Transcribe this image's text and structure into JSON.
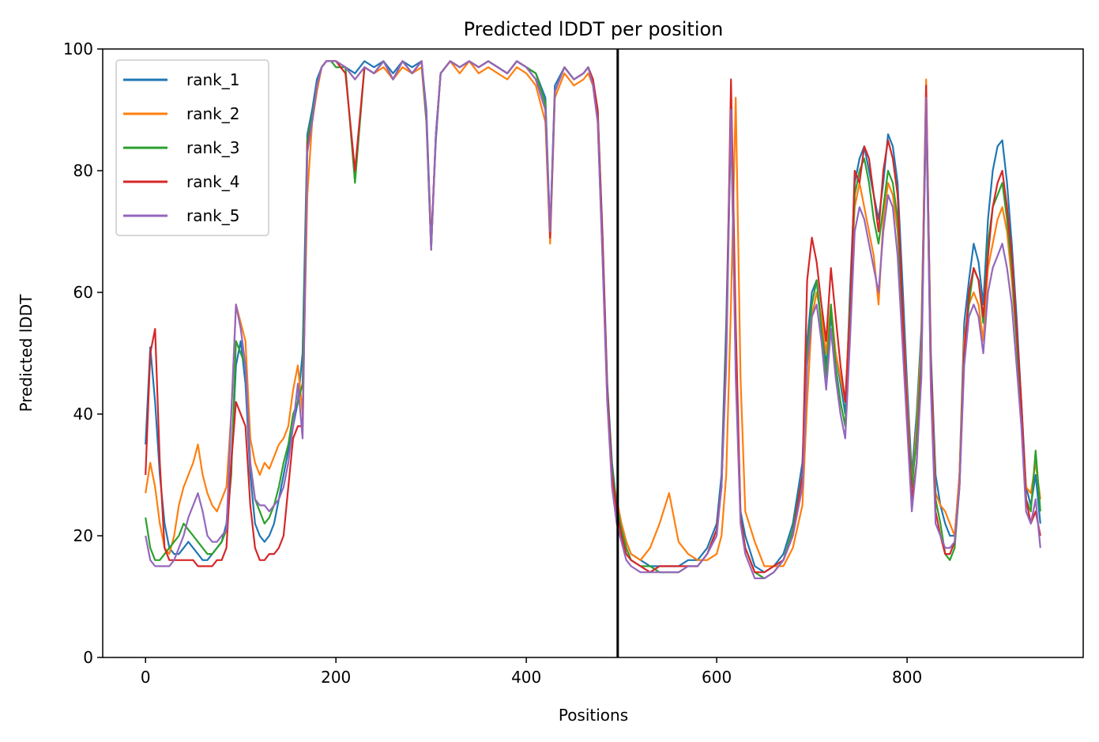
{
  "chart_data": {
    "type": "line",
    "title": "Predicted lDDT per position",
    "xlabel": "Positions",
    "ylabel": "Predicted lDDT",
    "xlim": [
      -45,
      985
    ],
    "ylim": [
      0,
      100
    ],
    "xticks": [
      0,
      200,
      400,
      600,
      800
    ],
    "yticks": [
      0,
      20,
      40,
      60,
      80,
      100
    ],
    "legend_position": "top-left",
    "vline_x": 496,
    "x": [
      0,
      5,
      10,
      15,
      20,
      25,
      30,
      35,
      40,
      45,
      50,
      55,
      60,
      65,
      70,
      75,
      80,
      85,
      90,
      95,
      100,
      105,
      110,
      115,
      120,
      125,
      130,
      135,
      140,
      145,
      150,
      155,
      160,
      165,
      170,
      175,
      180,
      185,
      190,
      195,
      200,
      210,
      220,
      230,
      240,
      250,
      260,
      270,
      280,
      290,
      295,
      300,
      305,
      310,
      320,
      330,
      340,
      350,
      360,
      370,
      380,
      390,
      400,
      410,
      420,
      425,
      430,
      440,
      450,
      460,
      465,
      470,
      475,
      480,
      485,
      490,
      495,
      500,
      505,
      510,
      520,
      530,
      540,
      550,
      560,
      570,
      580,
      590,
      600,
      605,
      610,
      615,
      620,
      625,
      630,
      640,
      650,
      660,
      670,
      680,
      690,
      695,
      700,
      705,
      710,
      715,
      720,
      725,
      730,
      735,
      740,
      745,
      750,
      755,
      760,
      765,
      770,
      775,
      780,
      785,
      790,
      795,
      800,
      805,
      810,
      815,
      820,
      825,
      830,
      835,
      840,
      845,
      850,
      855,
      860,
      865,
      870,
      875,
      880,
      885,
      890,
      895,
      900,
      905,
      910,
      915,
      920,
      925,
      930,
      935,
      940
    ],
    "series": [
      {
        "name": "rank_1",
        "color": "#1f77b4",
        "values": [
          35,
          51,
          42,
          30,
          22,
          18,
          17,
          17,
          18,
          19,
          18,
          17,
          16,
          16,
          17,
          18,
          19,
          22,
          32,
          48,
          52,
          45,
          30,
          22,
          20,
          19,
          20,
          22,
          26,
          30,
          34,
          38,
          42,
          50,
          86,
          90,
          95,
          97,
          98,
          98,
          98,
          97,
          96,
          98,
          97,
          98,
          96,
          98,
          97,
          98,
          90,
          68,
          85,
          96,
          98,
          97,
          98,
          97,
          98,
          97,
          96,
          98,
          97,
          96,
          92,
          70,
          94,
          97,
          95,
          96,
          97,
          95,
          90,
          70,
          45,
          32,
          25,
          22,
          19,
          17,
          16,
          15,
          15,
          15,
          15,
          16,
          16,
          18,
          22,
          30,
          55,
          90,
          50,
          24,
          20,
          15,
          14,
          15,
          17,
          22,
          32,
          52,
          60,
          62,
          55,
          48,
          56,
          50,
          45,
          40,
          60,
          78,
          82,
          84,
          80,
          76,
          72,
          78,
          86,
          84,
          78,
          62,
          45,
          30,
          40,
          54,
          93,
          50,
          30,
          25,
          22,
          20,
          20,
          30,
          55,
          62,
          68,
          65,
          58,
          72,
          80,
          84,
          85,
          78,
          68,
          56,
          42,
          28,
          25,
          30,
          22
        ]
      },
      {
        "name": "rank_2",
        "color": "#ff7f0e",
        "values": [
          27,
          32,
          28,
          22,
          18,
          17,
          20,
          25,
          28,
          30,
          32,
          35,
          30,
          27,
          25,
          24,
          26,
          28,
          40,
          58,
          55,
          52,
          36,
          32,
          30,
          32,
          31,
          33,
          35,
          36,
          38,
          44,
          48,
          40,
          76,
          88,
          93,
          97,
          98,
          98,
          98,
          97,
          95,
          97,
          96,
          97,
          95,
          97,
          96,
          97,
          88,
          67,
          86,
          96,
          98,
          96,
          98,
          96,
          97,
          96,
          95,
          97,
          96,
          94,
          88,
          68,
          92,
          96,
          94,
          95,
          96,
          94,
          88,
          66,
          42,
          30,
          26,
          22,
          19,
          17,
          16,
          18,
          22,
          27,
          19,
          17,
          16,
          16,
          17,
          20,
          30,
          58,
          92,
          46,
          24,
          19,
          15,
          15,
          15,
          18,
          25,
          42,
          56,
          60,
          56,
          50,
          58,
          50,
          46,
          42,
          58,
          74,
          78,
          74,
          70,
          66,
          58,
          72,
          78,
          76,
          70,
          58,
          42,
          28,
          38,
          52,
          95,
          48,
          27,
          25,
          24,
          22,
          20,
          30,
          52,
          58,
          60,
          58,
          52,
          64,
          68,
          72,
          74,
          70,
          62,
          52,
          40,
          28,
          27,
          32,
          26
        ]
      },
      {
        "name": "rank_3",
        "color": "#2ca02c",
        "values": [
          23,
          18,
          16,
          16,
          17,
          18,
          19,
          20,
          22,
          21,
          20,
          19,
          18,
          17,
          17,
          18,
          19,
          21,
          30,
          52,
          50,
          48,
          32,
          26,
          24,
          22,
          23,
          25,
          28,
          32,
          35,
          40,
          42,
          45,
          85,
          89,
          94,
          97,
          98,
          98,
          97,
          97,
          78,
          97,
          96,
          98,
          95,
          98,
          96,
          98,
          88,
          67,
          86,
          96,
          98,
          97,
          98,
          97,
          98,
          97,
          96,
          98,
          97,
          96,
          91,
          69,
          93,
          97,
          95,
          96,
          97,
          95,
          89,
          68,
          44,
          31,
          25,
          21,
          18,
          16,
          15,
          15,
          14,
          14,
          14,
          15,
          15,
          17,
          21,
          28,
          52,
          88,
          48,
          23,
          18,
          14,
          13,
          14,
          16,
          21,
          30,
          50,
          58,
          62,
          54,
          46,
          58,
          48,
          42,
          38,
          58,
          76,
          80,
          82,
          78,
          72,
          68,
          74,
          80,
          78,
          72,
          56,
          40,
          28,
          36,
          50,
          90,
          45,
          26,
          22,
          17,
          16,
          18,
          28,
          50,
          58,
          64,
          62,
          55,
          68,
          74,
          76,
          78,
          72,
          64,
          52,
          40,
          26,
          24,
          34,
          24
        ]
      },
      {
        "name": "rank_4",
        "color": "#d62728",
        "values": [
          30,
          50,
          54,
          32,
          18,
          16,
          16,
          16,
          16,
          16,
          16,
          15,
          15,
          15,
          15,
          16,
          16,
          18,
          32,
          42,
          40,
          38,
          25,
          18,
          16,
          16,
          17,
          17,
          18,
          20,
          28,
          36,
          38,
          38,
          84,
          88,
          94,
          97,
          98,
          98,
          98,
          96,
          80,
          97,
          96,
          98,
          95,
          98,
          96,
          98,
          89,
          68,
          86,
          96,
          98,
          97,
          98,
          97,
          98,
          97,
          96,
          98,
          97,
          95,
          90,
          69,
          93,
          97,
          95,
          96,
          97,
          95,
          90,
          69,
          44,
          30,
          24,
          20,
          17,
          16,
          15,
          14,
          15,
          15,
          15,
          15,
          15,
          17,
          21,
          28,
          50,
          95,
          55,
          23,
          18,
          14,
          14,
          15,
          16,
          20,
          30,
          62,
          69,
          65,
          58,
          52,
          64,
          56,
          48,
          42,
          56,
          80,
          78,
          84,
          82,
          76,
          70,
          80,
          85,
          82,
          76,
          58,
          40,
          26,
          32,
          48,
          94,
          48,
          24,
          20,
          17,
          17,
          19,
          28,
          50,
          60,
          64,
          62,
          56,
          66,
          74,
          78,
          80,
          74,
          66,
          54,
          42,
          26,
          22,
          24,
          20
        ]
      },
      {
        "name": "rank_5",
        "color": "#9467bd",
        "values": [
          20,
          16,
          15,
          15,
          15,
          15,
          16,
          18,
          20,
          23,
          25,
          27,
          24,
          20,
          19,
          19,
          20,
          21,
          40,
          58,
          54,
          48,
          32,
          26,
          25,
          25,
          24,
          25,
          26,
          28,
          32,
          38,
          45,
          36,
          83,
          88,
          94,
          97,
          98,
          98,
          98,
          97,
          95,
          97,
          96,
          98,
          95,
          98,
          96,
          98,
          89,
          67,
          86,
          96,
          98,
          97,
          98,
          97,
          98,
          97,
          96,
          98,
          97,
          95,
          90,
          70,
          93,
          97,
          95,
          96,
          97,
          94,
          88,
          66,
          42,
          28,
          22,
          19,
          16,
          15,
          14,
          14,
          14,
          14,
          14,
          15,
          15,
          17,
          20,
          28,
          48,
          90,
          46,
          22,
          17,
          13,
          13,
          14,
          16,
          20,
          28,
          48,
          56,
          58,
          52,
          44,
          54,
          46,
          40,
          36,
          52,
          70,
          74,
          72,
          68,
          64,
          60,
          70,
          76,
          74,
          66,
          52,
          38,
          24,
          32,
          46,
          92,
          44,
          22,
          20,
          18,
          18,
          19,
          28,
          48,
          56,
          58,
          56,
          50,
          60,
          64,
          66,
          68,
          64,
          58,
          48,
          38,
          24,
          22,
          26,
          18
        ]
      }
    ]
  }
}
